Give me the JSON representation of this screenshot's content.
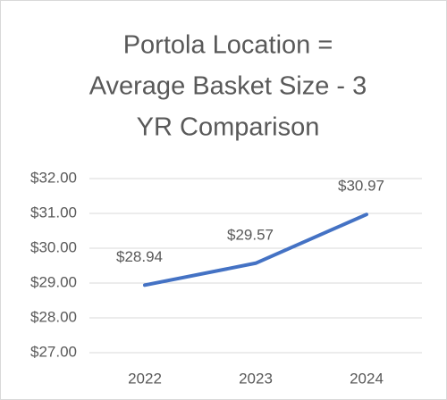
{
  "chart_data": {
    "type": "line",
    "title": [
      "Portola Location =",
      "Average Basket Size - 3",
      "YR Comparison"
    ],
    "categories": [
      "2022",
      "2023",
      "2024"
    ],
    "series": [
      {
        "name": "Average Basket Size",
        "color": "#4472c4",
        "values": [
          28.94,
          29.57,
          30.97
        ],
        "value_labels": [
          "$28.94",
          "$29.57",
          "$30.97"
        ]
      }
    ],
    "ylim": [
      27,
      32
    ],
    "yticks": [
      {
        "value": 27,
        "label": "$27.00"
      },
      {
        "value": 28,
        "label": "$28.00"
      },
      {
        "value": 29,
        "label": "$29.00"
      },
      {
        "value": 30,
        "label": "$30.00"
      },
      {
        "value": 31,
        "label": "$31.00"
      },
      {
        "value": 32,
        "label": "$32.00"
      }
    ],
    "grid": true
  }
}
